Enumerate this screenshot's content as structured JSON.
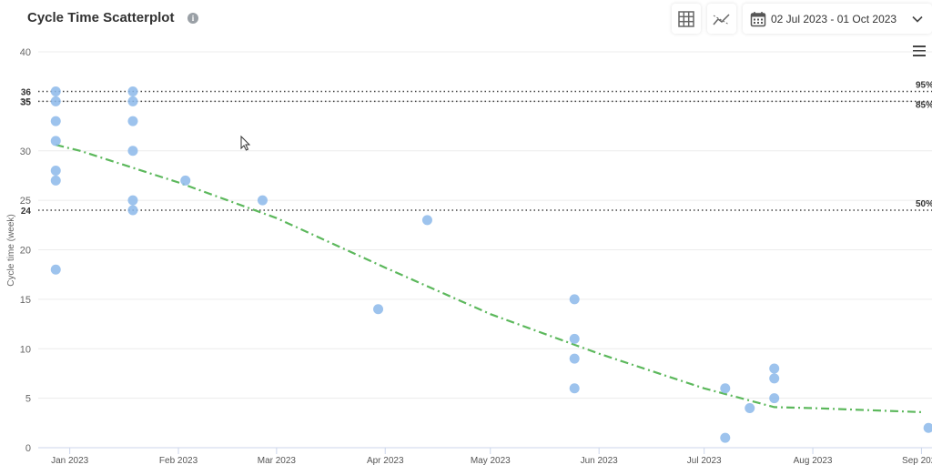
{
  "header": {
    "title": "Cycle Time Scatterplot",
    "info_symbol": "i",
    "date_range": "02 Jul 2023 - 01 Oct 2023"
  },
  "icons": {
    "info": "info-icon",
    "grid": "grid-icon",
    "trend": "trend-icon",
    "calendar": "calendar-icon",
    "chevron": "chevron-down-icon",
    "menu": "hamburger-menu-icon"
  },
  "colors": {
    "points": "#8cb8ea",
    "trend": "#5cb85c",
    "percentile_line": "#444444"
  },
  "chart_data": {
    "type": "scatter",
    "title": "Cycle Time Scatterplot",
    "ylabel": "Cycle time (week)",
    "xlabel": "",
    "ylim": [
      0,
      40
    ],
    "yticks": [
      0,
      5,
      10,
      15,
      20,
      25,
      30,
      35,
      40
    ],
    "xlim": [
      "2022-12-23",
      "2023-09-04"
    ],
    "xticks": [
      {
        "date": "2023-01-01",
        "label": "Jan 2023"
      },
      {
        "date": "2023-02-01",
        "label": "Feb 2023"
      },
      {
        "date": "2023-03-01",
        "label": "Mar 2023"
      },
      {
        "date": "2023-04-01",
        "label": "Apr 2023"
      },
      {
        "date": "2023-05-01",
        "label": "May 2023"
      },
      {
        "date": "2023-06-01",
        "label": "Jun 2023"
      },
      {
        "date": "2023-07-01",
        "label": "Jul 2023"
      },
      {
        "date": "2023-08-01",
        "label": "Aug 2023"
      },
      {
        "date": "2023-09-01",
        "label": "Sep 2023"
      }
    ],
    "grid": true,
    "percentiles": [
      {
        "label": "95%",
        "value": 36
      },
      {
        "label": "85%",
        "value": 35
      },
      {
        "label": "50%",
        "value": 24
      }
    ],
    "points": [
      {
        "x": "2022-12-28",
        "y": 36
      },
      {
        "x": "2022-12-28",
        "y": 35
      },
      {
        "x": "2022-12-28",
        "y": 33
      },
      {
        "x": "2022-12-28",
        "y": 31
      },
      {
        "x": "2022-12-28",
        "y": 28
      },
      {
        "x": "2022-12-28",
        "y": 27
      },
      {
        "x": "2022-12-28",
        "y": 18
      },
      {
        "x": "2023-01-19",
        "y": 36
      },
      {
        "x": "2023-01-19",
        "y": 35
      },
      {
        "x": "2023-01-19",
        "y": 33
      },
      {
        "x": "2023-01-19",
        "y": 30
      },
      {
        "x": "2023-01-19",
        "y": 25
      },
      {
        "x": "2023-01-19",
        "y": 24
      },
      {
        "x": "2023-02-03",
        "y": 27
      },
      {
        "x": "2023-02-25",
        "y": 25
      },
      {
        "x": "2023-03-30",
        "y": 14
      },
      {
        "x": "2023-04-13",
        "y": 23
      },
      {
        "x": "2023-05-25",
        "y": 15
      },
      {
        "x": "2023-05-25",
        "y": 11
      },
      {
        "x": "2023-05-25",
        "y": 9
      },
      {
        "x": "2023-05-25",
        "y": 6
      },
      {
        "x": "2023-07-07",
        "y": 6
      },
      {
        "x": "2023-07-07",
        "y": 1
      },
      {
        "x": "2023-07-14",
        "y": 4
      },
      {
        "x": "2023-07-21",
        "y": 8
      },
      {
        "x": "2023-07-21",
        "y": 7
      },
      {
        "x": "2023-07-21",
        "y": 5
      },
      {
        "x": "2023-09-03",
        "y": 2
      }
    ],
    "trend": [
      {
        "x": "2022-12-28",
        "y": 30.6
      },
      {
        "x": "2023-01-04",
        "y": 30
      },
      {
        "x": "2023-02-01",
        "y": 26.8
      },
      {
        "x": "2023-03-01",
        "y": 23.2
      },
      {
        "x": "2023-04-01",
        "y": 18.2
      },
      {
        "x": "2023-05-01",
        "y": 13.5
      },
      {
        "x": "2023-06-01",
        "y": 9.5
      },
      {
        "x": "2023-07-01",
        "y": 6
      },
      {
        "x": "2023-07-21",
        "y": 4.1
      },
      {
        "x": "2023-08-01",
        "y": 4
      },
      {
        "x": "2023-09-01",
        "y": 3.6
      }
    ]
  }
}
